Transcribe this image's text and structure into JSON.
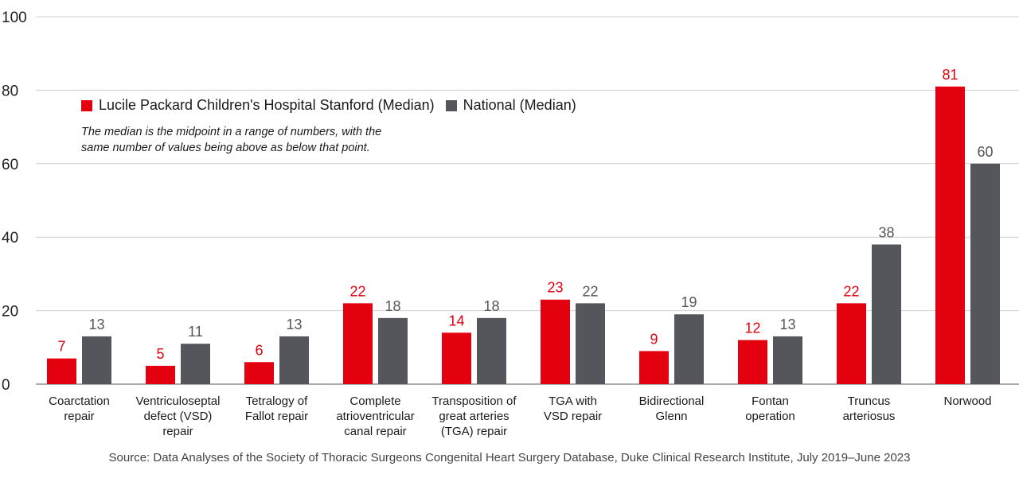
{
  "chart_data": {
    "type": "bar",
    "categories": [
      [
        "Coarctation",
        "repair"
      ],
      [
        "Ventriculoseptal",
        "defect (VSD)",
        "repair"
      ],
      [
        "Tetralogy of",
        "Fallot repair"
      ],
      [
        "Complete",
        "atrioventricular",
        "canal repair"
      ],
      [
        "Transposition of",
        "great arteries",
        "(TGA) repair"
      ],
      [
        "TGA with",
        "VSD repair"
      ],
      [
        "Bidirectional",
        "Glenn"
      ],
      [
        "Fontan",
        "operation"
      ],
      [
        "Truncus",
        "arteriosus"
      ],
      [
        "Norwood"
      ]
    ],
    "series": [
      {
        "name": "Lucile Packard Children's Hospital Stanford (Median)",
        "color": "#e3000f",
        "values": [
          7,
          5,
          6,
          22,
          14,
          23,
          9,
          12,
          22,
          81
        ]
      },
      {
        "name": "National (Median)",
        "color": "#54565b",
        "values": [
          13,
          11,
          13,
          18,
          18,
          22,
          19,
          13,
          38,
          60
        ]
      }
    ],
    "ylim": [
      0,
      100
    ],
    "yticks": [
      0,
      20,
      40,
      60,
      80,
      100
    ],
    "grid": true,
    "legend_position": "top-left",
    "note": [
      "The median is the midpoint in a range of numbers, with the",
      "same number of values being above as below that point."
    ],
    "source": "Source: Data Analyses of the Society of Thoracic Surgeons Congenital Heart Surgery Database, Duke Clinical Research Institute, July 2019–June 2023"
  }
}
